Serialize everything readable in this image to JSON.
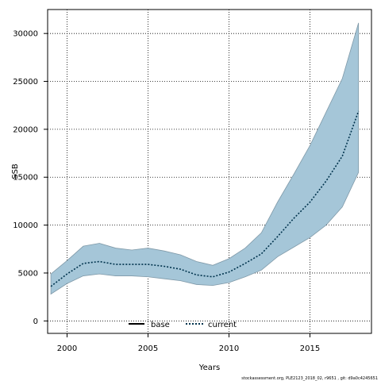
{
  "chart_data": {
    "type": "line",
    "title": "",
    "xlabel": "Years",
    "ylabel": "SSB",
    "xlim": [
      1998.8,
      2018.8
    ],
    "ylim": [
      -1300,
      32500
    ],
    "x_ticks": [
      2000,
      2005,
      2010,
      2015
    ],
    "y_ticks": [
      0,
      5000,
      10000,
      15000,
      20000,
      25000,
      30000
    ],
    "grid": true,
    "grid_style": "dotted",
    "legend": {
      "placement": "bottom-center",
      "entries": [
        "base",
        "current"
      ]
    },
    "x": [
      1999,
      2000,
      2001,
      2002,
      2003,
      2004,
      2005,
      2006,
      2007,
      2008,
      2009,
      2010,
      2011,
      2012,
      2013,
      2014,
      2015,
      2016,
      2017,
      2018
    ],
    "series": [
      {
        "name": "current",
        "style": "dotted",
        "color": "#00334d",
        "values": [
          3600,
          4900,
          6000,
          6200,
          5900,
          5900,
          5900,
          5700,
          5400,
          4800,
          4600,
          5100,
          6000,
          7000,
          8800,
          10700,
          12400,
          14600,
          17200,
          21900
        ]
      }
    ],
    "band": {
      "color": "#a5c6d8",
      "lower": [
        2800,
        3900,
        4700,
        4900,
        4700,
        4700,
        4600,
        4400,
        4200,
        3800,
        3700,
        4000,
        4600,
        5300,
        6700,
        7700,
        8700,
        10000,
        11900,
        15500
      ],
      "upper": [
        4900,
        6300,
        7800,
        8100,
        7600,
        7400,
        7600,
        7300,
        6900,
        6200,
        5800,
        6500,
        7600,
        9200,
        12400,
        15300,
        18300,
        21800,
        25300,
        31100
      ]
    },
    "base_series": {
      "name": "base",
      "color": "#000000",
      "values": []
    }
  },
  "footer_text": "stockassessment.org, PLE2123_2018_02, r9651 , git: d9a0c4245651"
}
